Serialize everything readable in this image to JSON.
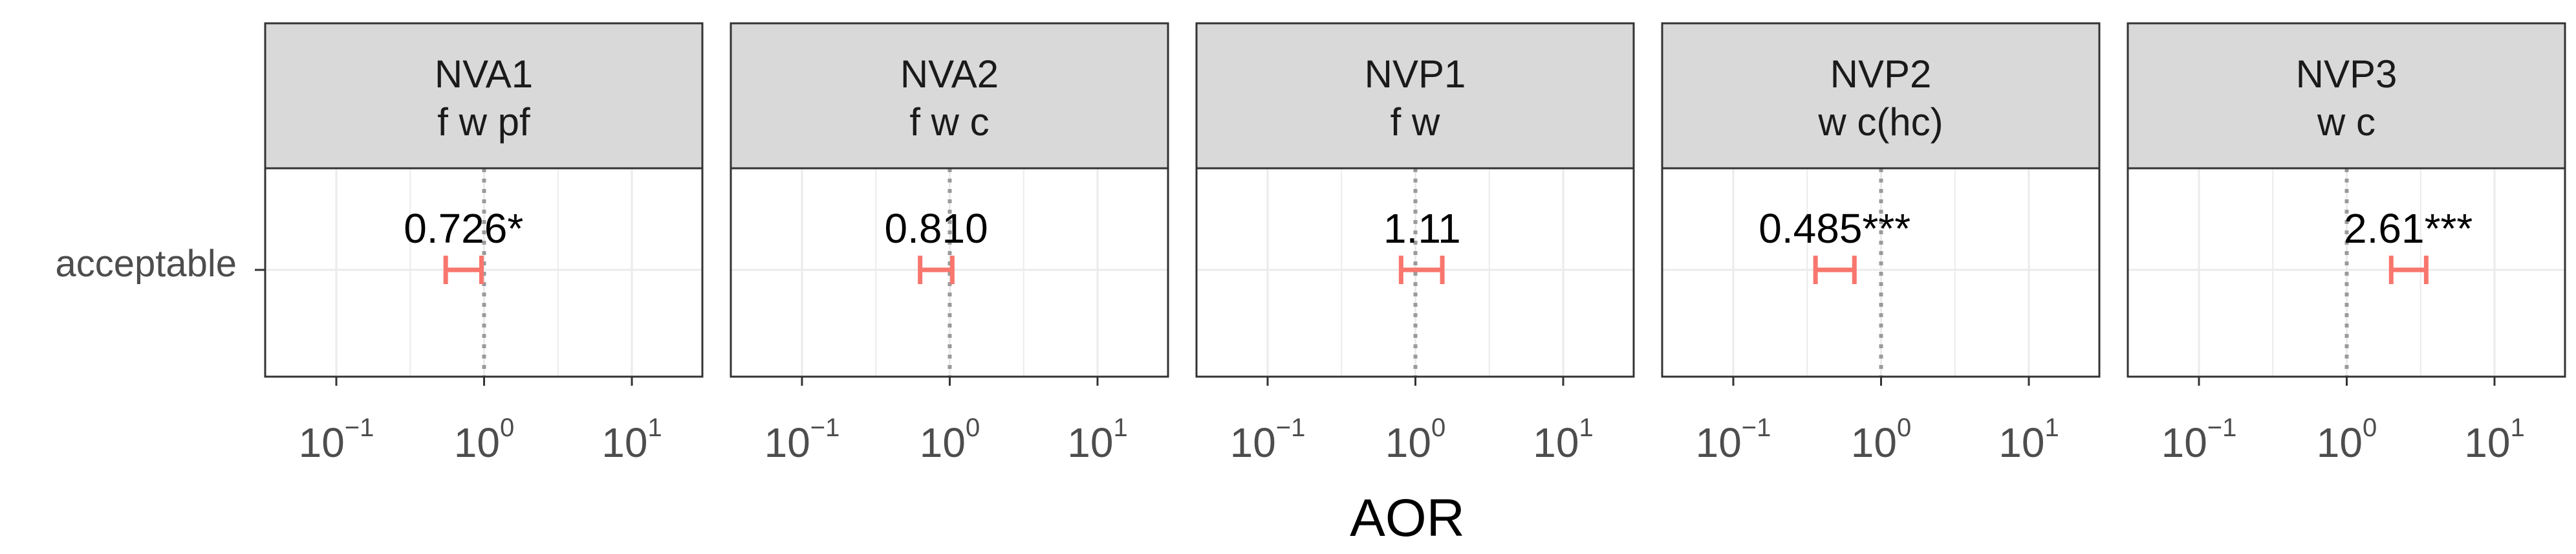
{
  "chart_data": {
    "type": "forest",
    "x_scale": "log10",
    "xlim": [
      0.033,
      30
    ],
    "xticks": [
      0.1,
      1,
      10
    ],
    "xtick_labels": [
      {
        "base": "10",
        "exp": "−1"
      },
      {
        "base": "10",
        "exp": "0"
      },
      {
        "base": "10",
        "exp": "1"
      }
    ],
    "xlabel": "AOR",
    "y_categories": [
      "acceptable"
    ],
    "reference_line": 1,
    "grid": true,
    "colors": {
      "interval": "#f8766d",
      "reference": "#9a9a9a",
      "strip_fill": "#d9d9d9",
      "panel_border": "#333333",
      "grid": "#ebebeb"
    },
    "panels": [
      {
        "title": "NVA1",
        "subtitle": "f w pf",
        "category": "acceptable",
        "aor": 0.726,
        "lower": 0.55,
        "upper": 0.96,
        "label": "0.726*"
      },
      {
        "title": "NVA2",
        "subtitle": "f w c",
        "category": "acceptable",
        "aor": 0.81,
        "lower": 0.63,
        "upper": 1.04,
        "label": "0.810"
      },
      {
        "title": "NVP1",
        "subtitle": "f w",
        "category": "acceptable",
        "aor": 1.11,
        "lower": 0.8,
        "upper": 1.52,
        "label": "1.11"
      },
      {
        "title": "NVP2",
        "subtitle": "w c(hc)",
        "category": "acceptable",
        "aor": 0.485,
        "lower": 0.36,
        "upper": 0.66,
        "label": "0.485***"
      },
      {
        "title": "NVP3",
        "subtitle": "w c",
        "category": "acceptable",
        "aor": 2.61,
        "lower": 2.0,
        "upper": 3.45,
        "label": "2.61***"
      }
    ]
  }
}
